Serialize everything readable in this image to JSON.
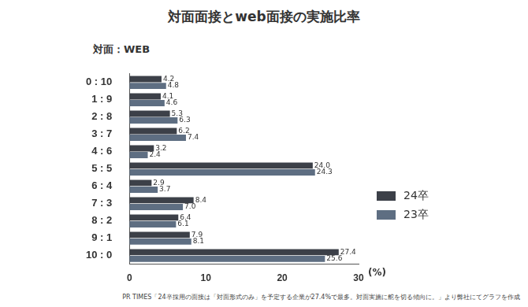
{
  "chart_data": {
    "type": "bar",
    "orientation": "horizontal",
    "title": "対面面接とweb面接の実施比率",
    "ylabel": "対面：WEB",
    "xlabel": "(%)",
    "note": "PR TIMES「24卒採用の面接は「対面形式のみ」を予定する企業が27.4%で最多。対面実施に舵を切る傾向に。」より弊社にてグラフを作成",
    "categories": [
      "0 : 10",
      "1 : 9",
      "2 : 8",
      "3 : 7",
      "4 : 6",
      "5 : 5",
      "6 : 4",
      "7 : 3",
      "8 : 2",
      "9 : 1",
      "10 : 0"
    ],
    "series": [
      {
        "name": "24卒",
        "color": "#3c4048",
        "values": [
          4.2,
          4.1,
          5.3,
          6.2,
          3.2,
          24.0,
          2.9,
          8.4,
          6.4,
          7.9,
          27.4
        ],
        "value_labels": [
          "4.2",
          "4.1",
          "5.3",
          "6.2",
          "3.2",
          "24.0",
          "2.9",
          "8.4",
          "6.4",
          "7.9",
          "27.4"
        ]
      },
      {
        "name": "23卒",
        "color": "#5e6e82",
        "values": [
          4.8,
          4.6,
          6.3,
          7.4,
          2.4,
          24.3,
          3.7,
          7.0,
          6.1,
          8.1,
          25.6
        ],
        "value_labels": [
          "4.8",
          "4.6",
          "6.3",
          "7.4",
          "2.4",
          "24.3",
          "3.7",
          "7.0",
          "6.1",
          "8.1",
          "25.6"
        ]
      }
    ],
    "xlim": [
      0,
      30
    ],
    "xticks": [
      0,
      10,
      20,
      30
    ],
    "grid": false,
    "legend": "right",
    "data_labels": true
  }
}
